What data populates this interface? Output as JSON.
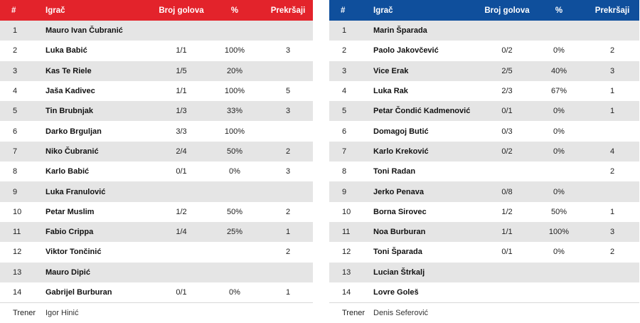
{
  "headers": {
    "num": "#",
    "player": "Igrač",
    "goals": "Broj golova",
    "pct": "%",
    "fouls": "Prekršaji"
  },
  "colors": {
    "home": "#e3232b",
    "away": "#0f4f9c"
  },
  "home": {
    "players": [
      {
        "num": "1",
        "name": "Mauro Ivan Čubranić",
        "goals": "",
        "pct": "",
        "fouls": ""
      },
      {
        "num": "2",
        "name": "Luka Babić",
        "goals": "1/1",
        "pct": "100%",
        "fouls": "3"
      },
      {
        "num": "3",
        "name": "Kas Te Riele",
        "goals": "1/5",
        "pct": "20%",
        "fouls": ""
      },
      {
        "num": "4",
        "name": "Jaša Kadivec",
        "goals": "1/1",
        "pct": "100%",
        "fouls": "5"
      },
      {
        "num": "5",
        "name": "Tin Brubnjak",
        "goals": "1/3",
        "pct": "33%",
        "fouls": "3"
      },
      {
        "num": "6",
        "name": "Darko Brguljan",
        "goals": "3/3",
        "pct": "100%",
        "fouls": ""
      },
      {
        "num": "7",
        "name": "Niko Čubranić",
        "goals": "2/4",
        "pct": "50%",
        "fouls": "2"
      },
      {
        "num": "8",
        "name": "Karlo Babić",
        "goals": "0/1",
        "pct": "0%",
        "fouls": "3"
      },
      {
        "num": "9",
        "name": "Luka Franulović",
        "goals": "",
        "pct": "",
        "fouls": ""
      },
      {
        "num": "10",
        "name": "Petar Muslim",
        "goals": "1/2",
        "pct": "50%",
        "fouls": "2"
      },
      {
        "num": "11",
        "name": "Fabio Crippa",
        "goals": "1/4",
        "pct": "25%",
        "fouls": "1"
      },
      {
        "num": "12",
        "name": "Viktor Tončinić",
        "goals": "",
        "pct": "",
        "fouls": "2"
      },
      {
        "num": "13",
        "name": "Mauro Dipić",
        "goals": "",
        "pct": "",
        "fouls": ""
      },
      {
        "num": "14",
        "name": "Gabrijel Burburan",
        "goals": "0/1",
        "pct": "0%",
        "fouls": "1"
      }
    ],
    "coach": {
      "label": "Trener",
      "name": "Igor Hinić"
    }
  },
  "away": {
    "players": [
      {
        "num": "1",
        "name": "Marin Šparada",
        "goals": "",
        "pct": "",
        "fouls": ""
      },
      {
        "num": "2",
        "name": "Paolo Jakovčević",
        "goals": "0/2",
        "pct": "0%",
        "fouls": "2"
      },
      {
        "num": "3",
        "name": "Vice Erak",
        "goals": "2/5",
        "pct": "40%",
        "fouls": "3"
      },
      {
        "num": "4",
        "name": "Luka Rak",
        "goals": "2/3",
        "pct": "67%",
        "fouls": "1"
      },
      {
        "num": "5",
        "name": "Petar Čondić Kadmenović",
        "goals": "0/1",
        "pct": "0%",
        "fouls": "1"
      },
      {
        "num": "6",
        "name": "Domagoj Butić",
        "goals": "0/3",
        "pct": "0%",
        "fouls": ""
      },
      {
        "num": "7",
        "name": "Karlo Kreković",
        "goals": "0/2",
        "pct": "0%",
        "fouls": "4"
      },
      {
        "num": "8",
        "name": "Toni Radan",
        "goals": "",
        "pct": "",
        "fouls": "2"
      },
      {
        "num": "9",
        "name": "Jerko Penava",
        "goals": "0/8",
        "pct": "0%",
        "fouls": ""
      },
      {
        "num": "10",
        "name": "Borna Sirovec",
        "goals": "1/2",
        "pct": "50%",
        "fouls": "1"
      },
      {
        "num": "11",
        "name": "Noa Burburan",
        "goals": "1/1",
        "pct": "100%",
        "fouls": "3"
      },
      {
        "num": "12",
        "name": "Toni Šparada",
        "goals": "0/1",
        "pct": "0%",
        "fouls": "2"
      },
      {
        "num": "13",
        "name": "Lucian Štrkalj",
        "goals": "",
        "pct": "",
        "fouls": ""
      },
      {
        "num": "14",
        "name": "Lovre Goleš",
        "goals": "",
        "pct": "",
        "fouls": ""
      }
    ],
    "coach": {
      "label": "Trener",
      "name": "Denis Seferović"
    }
  }
}
